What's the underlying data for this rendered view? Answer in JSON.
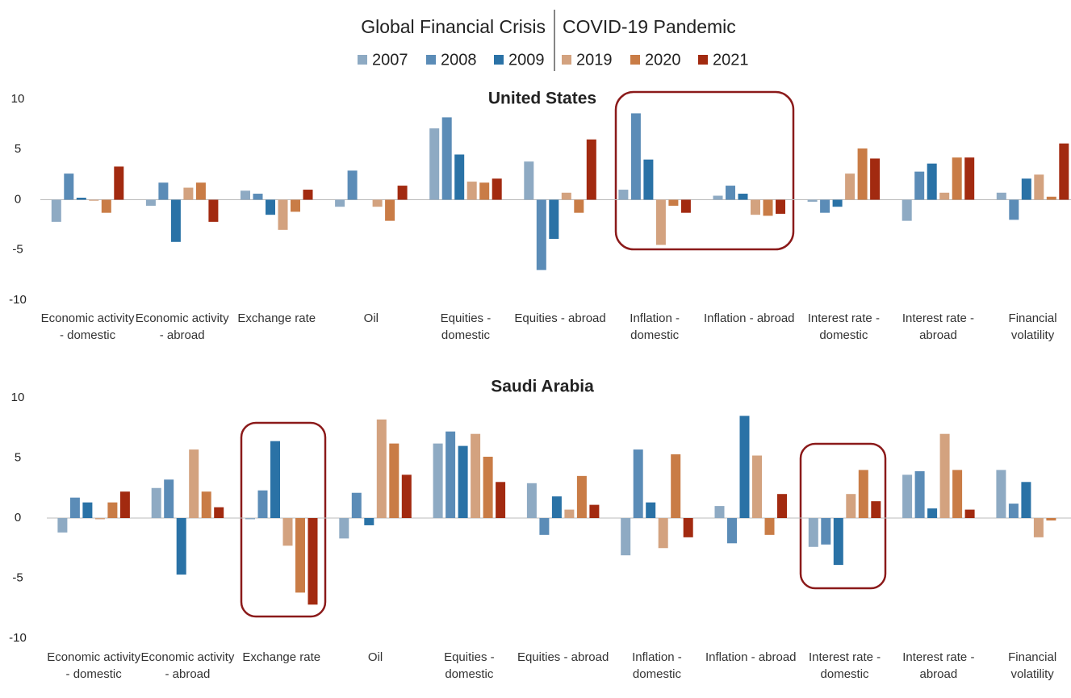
{
  "header": {
    "group_labels": [
      "Global Financial Crisis",
      "COVID-19 Pandemic"
    ]
  },
  "chart_data": [
    {
      "type": "bar",
      "title": "United States",
      "categories": [
        "Economic activity - domestic",
        "Economic activity - abroad",
        "Exchange rate",
        "Oil",
        "Equities - domestic",
        "Equities - abroad",
        "Inflation - domestic",
        "Inflation - abroad",
        "Interest rate - domestic",
        "Interest rate - abroad",
        "Financial volatility"
      ],
      "series": [
        {
          "name": "2007",
          "color": "#8eaac3",
          "values": [
            -2.2,
            -0.6,
            0.9,
            -0.7,
            7.1,
            3.8,
            1.0,
            0.4,
            -0.2,
            -2.1,
            0.7
          ]
        },
        {
          "name": "2008",
          "color": "#5b8cb7",
          "values": [
            2.6,
            1.7,
            0.6,
            2.9,
            8.2,
            -7.0,
            8.6,
            1.4,
            -1.3,
            2.8,
            -2.0
          ]
        },
        {
          "name": "2009",
          "color": "#2a72a6",
          "values": [
            0.2,
            -4.2,
            -1.5,
            0,
            4.5,
            -3.9,
            4.0,
            0.6,
            -0.7,
            3.6,
            2.1
          ]
        },
        {
          "name": "2019",
          "color": "#d3a27f",
          "values": [
            -0.1,
            1.2,
            -3.0,
            -0.7,
            1.8,
            0.7,
            -4.5,
            -1.5,
            2.6,
            0.7,
            2.5
          ]
        },
        {
          "name": "2020",
          "color": "#c97c46",
          "values": [
            -1.3,
            1.7,
            -1.2,
            -2.1,
            1.7,
            -1.3,
            -0.6,
            -1.6,
            5.1,
            4.2,
            0.3
          ]
        },
        {
          "name": "2021",
          "color": "#a22a10",
          "values": [
            3.3,
            -2.2,
            1.0,
            1.4,
            2.1,
            6.0,
            -1.3,
            -1.4,
            4.1,
            4.2,
            5.6
          ]
        }
      ],
      "ylim": [
        -10,
        10
      ],
      "yticks": [
        -10,
        -5,
        0,
        5,
        10
      ]
    },
    {
      "type": "bar",
      "title": "Saudi Arabia",
      "categories": [
        "Economic activity - domestic",
        "Economic activity - abroad",
        "Exchange rate",
        "Oil",
        "Equities - domestic",
        "Equities - abroad",
        "Inflation - domestic",
        "Inflation - abroad",
        "Interest rate - domestic",
        "Interest rate - abroad",
        "Financial volatility"
      ],
      "series": [
        {
          "name": "2007",
          "color": "#8eaac3",
          "values": [
            -1.2,
            2.5,
            -0.1,
            -1.7,
            6.2,
            2.9,
            -3.1,
            1.0,
            -2.4,
            3.6,
            4.0
          ]
        },
        {
          "name": "2008",
          "color": "#5b8cb7",
          "values": [
            1.7,
            3.2,
            2.3,
            2.1,
            7.2,
            -1.4,
            5.7,
            -2.1,
            -2.2,
            3.9,
            1.2
          ]
        },
        {
          "name": "2009",
          "color": "#2a72a6",
          "values": [
            1.3,
            -4.7,
            6.4,
            -0.6,
            6.0,
            1.8,
            1.3,
            8.5,
            -3.9,
            0.8,
            3.0
          ]
        },
        {
          "name": "2019",
          "color": "#d3a27f",
          "values": [
            -0.1,
            5.7,
            -2.3,
            8.2,
            7.0,
            0.7,
            -2.5,
            5.2,
            2.0,
            7.0,
            -1.6
          ]
        },
        {
          "name": "2020",
          "color": "#c97c46",
          "values": [
            1.3,
            2.2,
            -6.2,
            6.2,
            5.1,
            3.5,
            5.3,
            -1.4,
            4.0,
            4.0,
            -0.2
          ]
        },
        {
          "name": "2021",
          "color": "#a22a10",
          "values": [
            2.2,
            0.9,
            -7.2,
            3.6,
            3.0,
            1.1,
            -1.6,
            2.0,
            1.4,
            0.7,
            0
          ]
        }
      ],
      "ylim": [
        -10,
        10
      ],
      "yticks": [
        -10,
        -5,
        0,
        5,
        10
      ]
    }
  ]
}
